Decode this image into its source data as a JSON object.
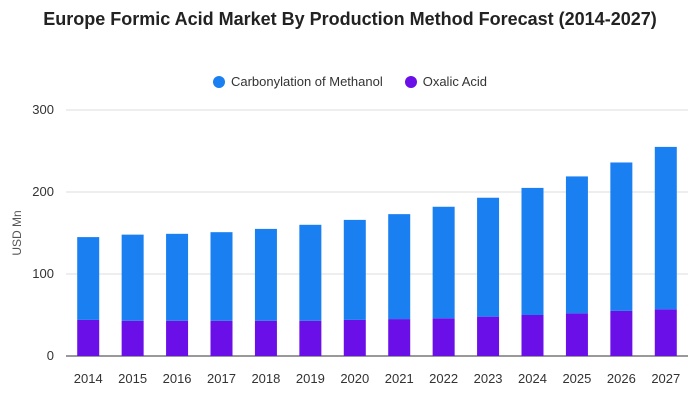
{
  "chart_data": {
    "type": "bar",
    "stacked": true,
    "title": "Europe Formic Acid Market By Production Method Forecast (2014-2027)",
    "xlabel": "",
    "ylabel": "USD Mn",
    "ylim": [
      0,
      300
    ],
    "yticks": [
      0,
      100,
      200,
      300
    ],
    "grid": true,
    "legend_position": "top",
    "categories": [
      "2014",
      "2015",
      "2016",
      "2017",
      "2018",
      "2019",
      "2020",
      "2021",
      "2022",
      "2023",
      "2024",
      "2025",
      "2026",
      "2027"
    ],
    "series": [
      {
        "name": "Oxalic Acid",
        "color": "#6a0fe8",
        "values": [
          44,
          43,
          43,
          43,
          43,
          43,
          44,
          45,
          46,
          48,
          50,
          52,
          55,
          57
        ]
      },
      {
        "name": "Carbonylation of Methanol",
        "color": "#1a7ff0",
        "values": [
          101,
          105,
          106,
          108,
          112,
          117,
          122,
          128,
          136,
          145,
          155,
          167,
          181,
          198
        ]
      }
    ]
  },
  "legend_items": [
    {
      "label": "Carbonylation of Methanol",
      "color": "#1a7ff0"
    },
    {
      "label": "Oxalic Acid",
      "color": "#6a0fe8"
    }
  ]
}
